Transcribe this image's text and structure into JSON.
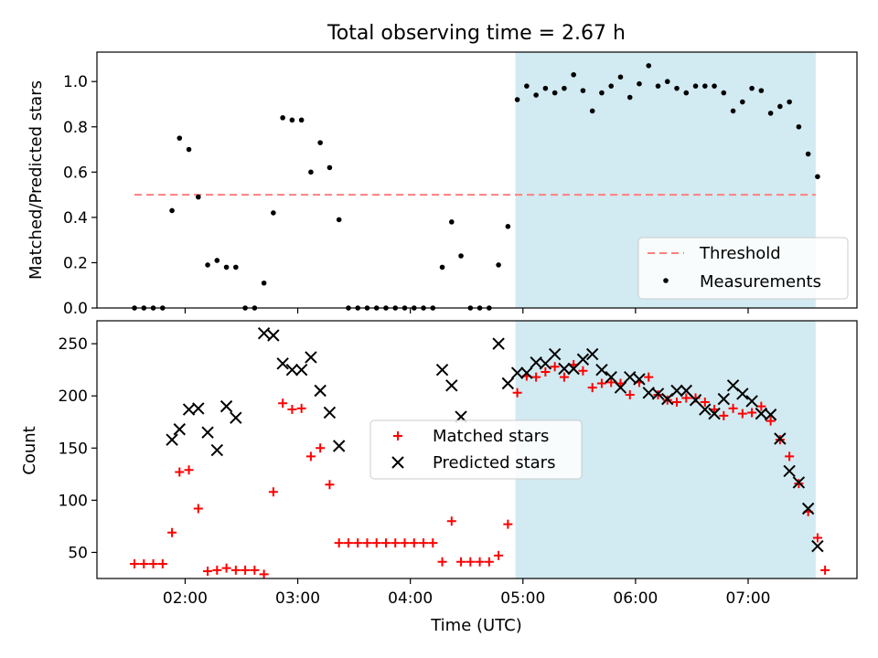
{
  "chart_data": [
    {
      "type": "scatter",
      "title": "Total observing time = 2.67 h",
      "ylabel": "Matched/Predicted stars",
      "xlabel": "",
      "ylim": [
        0,
        1.13
      ],
      "yticks": [
        "0.0",
        "0.2",
        "0.4",
        "0.6",
        "0.8",
        "1.0"
      ],
      "threshold": {
        "name": "Threshold",
        "value": 0.5,
        "x_start": "01:33",
        "x_end": "07:36",
        "color": "#ff7f7f"
      },
      "shaded_region": {
        "x_start": "04:56",
        "x_end": "07:36",
        "color": "#add8e6"
      },
      "legend": {
        "position": "lower right",
        "entries": [
          "Threshold",
          "Measurements"
        ]
      },
      "series": [
        {
          "name": "Measurements",
          "color": "#000000",
          "points": [
            [
              "01:33",
              0
            ],
            [
              "01:38",
              0
            ],
            [
              "01:43",
              0
            ],
            [
              "01:48",
              0
            ],
            [
              "01:53",
              0.43
            ],
            [
              "01:57",
              0.75
            ],
            [
              "02:02",
              0.7
            ],
            [
              "02:07",
              0.49
            ],
            [
              "02:12",
              0.19
            ],
            [
              "02:17",
              0.21
            ],
            [
              "02:22",
              0.18
            ],
            [
              "02:27",
              0.18
            ],
            [
              "02:32",
              0
            ],
            [
              "02:37",
              0
            ],
            [
              "02:42",
              0.11
            ],
            [
              "02:47",
              0.42
            ],
            [
              "02:52",
              0.84
            ],
            [
              "02:57",
              0.83
            ],
            [
              "03:02",
              0.83
            ],
            [
              "03:07",
              0.6
            ],
            [
              "03:12",
              0.73
            ],
            [
              "03:17",
              0.62
            ],
            [
              "03:22",
              0.39
            ],
            [
              "03:27",
              0
            ],
            [
              "03:32",
              0
            ],
            [
              "03:37",
              0
            ],
            [
              "03:42",
              0
            ],
            [
              "03:47",
              0
            ],
            [
              "03:52",
              0
            ],
            [
              "03:57",
              0
            ],
            [
              "04:02",
              0
            ],
            [
              "04:07",
              0
            ],
            [
              "04:12",
              0
            ],
            [
              "04:17",
              0.18
            ],
            [
              "04:22",
              0.38
            ],
            [
              "04:27",
              0.23
            ],
            [
              "04:32",
              0
            ],
            [
              "04:37",
              0
            ],
            [
              "04:42",
              0
            ],
            [
              "04:47",
              0.19
            ],
            [
              "04:52",
              0.36
            ],
            [
              "04:57",
              0.92
            ],
            [
              "05:02",
              0.98
            ],
            [
              "05:07",
              0.94
            ],
            [
              "05:12",
              0.97
            ],
            [
              "05:17",
              0.95
            ],
            [
              "05:22",
              0.97
            ],
            [
              "05:27",
              1.03
            ],
            [
              "05:32",
              0.96
            ],
            [
              "05:37",
              0.87
            ],
            [
              "05:42",
              0.95
            ],
            [
              "05:47",
              0.98
            ],
            [
              "05:52",
              1.02
            ],
            [
              "05:57",
              0.93
            ],
            [
              "06:02",
              0.99
            ],
            [
              "06:07",
              1.07
            ],
            [
              "06:12",
              0.98
            ],
            [
              "06:17",
              1.0
            ],
            [
              "06:22",
              0.97
            ],
            [
              "06:27",
              0.95
            ],
            [
              "06:32",
              0.98
            ],
            [
              "06:37",
              0.98
            ],
            [
              "06:42",
              0.98
            ],
            [
              "06:47",
              0.95
            ],
            [
              "06:52",
              0.87
            ],
            [
              "06:57",
              0.91
            ],
            [
              "07:02",
              0.97
            ],
            [
              "07:07",
              0.96
            ],
            [
              "07:12",
              0.86
            ],
            [
              "07:17",
              0.89
            ],
            [
              "07:22",
              0.91
            ],
            [
              "07:27",
              0.8
            ],
            [
              "07:32",
              0.68
            ],
            [
              "07:37",
              0.58
            ]
          ]
        }
      ]
    },
    {
      "type": "scatter",
      "title": "",
      "ylabel": "Count",
      "xlabel": "Time (UTC)",
      "ylim": [
        25,
        272
      ],
      "xlim": [
        "01:13",
        "07:58"
      ],
      "yticks": [
        "50",
        "100",
        "150",
        "200",
        "250"
      ],
      "xticks": [
        "02:00",
        "03:00",
        "04:00",
        "05:00",
        "06:00",
        "07:00"
      ],
      "shaded_region": {
        "x_start": "04:56",
        "x_end": "07:36",
        "color": "#add8e6"
      },
      "legend": {
        "position": "center",
        "entries": [
          "Matched stars",
          "Predicted stars"
        ]
      },
      "series": [
        {
          "name": "Matched stars",
          "marker": "plus",
          "color": "#ff0000",
          "points": [
            [
              "01:33",
              39
            ],
            [
              "01:38",
              39
            ],
            [
              "01:43",
              39
            ],
            [
              "01:48",
              39
            ],
            [
              "01:53",
              69
            ],
            [
              "01:57",
              127
            ],
            [
              "02:02",
              129
            ],
            [
              "02:07",
              92
            ],
            [
              "02:12",
              32
            ],
            [
              "02:17",
              33
            ],
            [
              "02:22",
              35
            ],
            [
              "02:27",
              33
            ],
            [
              "02:32",
              33
            ],
            [
              "02:37",
              33
            ],
            [
              "02:42",
              29
            ],
            [
              "02:47",
              108
            ],
            [
              "02:52",
              193
            ],
            [
              "02:57",
              187
            ],
            [
              "03:02",
              188
            ],
            [
              "03:07",
              142
            ],
            [
              "03:12",
              150
            ],
            [
              "03:17",
              115
            ],
            [
              "03:22",
              59
            ],
            [
              "03:27",
              59
            ],
            [
              "03:32",
              59
            ],
            [
              "03:37",
              59
            ],
            [
              "03:42",
              59
            ],
            [
              "03:47",
              59
            ],
            [
              "03:52",
              59
            ],
            [
              "03:57",
              59
            ],
            [
              "04:02",
              59
            ],
            [
              "04:07",
              59
            ],
            [
              "04:12",
              59
            ],
            [
              "04:17",
              41
            ],
            [
              "04:22",
              80
            ],
            [
              "04:27",
              41
            ],
            [
              "04:32",
              41
            ],
            [
              "04:37",
              41
            ],
            [
              "04:42",
              41
            ],
            [
              "04:47",
              47
            ],
            [
              "04:52",
              77
            ],
            [
              "04:57",
              203
            ],
            [
              "05:02",
              219
            ],
            [
              "05:07",
              218
            ],
            [
              "05:12",
              223
            ],
            [
              "05:17",
              228
            ],
            [
              "05:22",
              218
            ],
            [
              "05:27",
              230
            ],
            [
              "05:32",
              224
            ],
            [
              "05:37",
              208
            ],
            [
              "05:42",
              212
            ],
            [
              "05:47",
              213
            ],
            [
              "05:52",
              212
            ],
            [
              "05:57",
              201
            ],
            [
              "06:02",
              213
            ],
            [
              "06:07",
              218
            ],
            [
              "06:12",
              201
            ],
            [
              "06:17",
              196
            ],
            [
              "06:22",
              194
            ],
            [
              "06:27",
              198
            ],
            [
              "06:32",
              198
            ],
            [
              "06:37",
              194
            ],
            [
              "06:42",
              187
            ],
            [
              "06:47",
              181
            ],
            [
              "06:52",
              188
            ],
            [
              "06:57",
              183
            ],
            [
              "07:02",
              184
            ],
            [
              "07:07",
              190
            ],
            [
              "07:12",
              176
            ],
            [
              "07:17",
              158
            ],
            [
              "07:22",
              142
            ],
            [
              "07:27",
              116
            ],
            [
              "07:32",
              89
            ],
            [
              "07:37",
              64
            ],
            [
              "07:41",
              33
            ]
          ]
        },
        {
          "name": "Predicted stars",
          "marker": "x",
          "color": "#000000",
          "points": [
            [
              "01:53",
              158
            ],
            [
              "01:57",
              168
            ],
            [
              "02:02",
              187
            ],
            [
              "02:07",
              188
            ],
            [
              "02:12",
              165
            ],
            [
              "02:17",
              148
            ],
            [
              "02:22",
              190
            ],
            [
              "02:27",
              179
            ],
            [
              "02:42",
              260
            ],
            [
              "02:47",
              258
            ],
            [
              "02:52",
              231
            ],
            [
              "02:57",
              225
            ],
            [
              "03:02",
              225
            ],
            [
              "03:07",
              237
            ],
            [
              "03:12",
              205
            ],
            [
              "03:17",
              184
            ],
            [
              "03:22",
              152
            ],
            [
              "04:17",
              225
            ],
            [
              "04:22",
              210
            ],
            [
              "04:27",
              180
            ],
            [
              "04:47",
              250
            ],
            [
              "04:52",
              212
            ],
            [
              "04:57",
              222
            ],
            [
              "05:02",
              222
            ],
            [
              "05:07",
              232
            ],
            [
              "05:12",
              231
            ],
            [
              "05:17",
              240
            ],
            [
              "05:22",
              226
            ],
            [
              "05:27",
              226
            ],
            [
              "05:32",
              235
            ],
            [
              "05:37",
              240
            ],
            [
              "05:42",
              225
            ],
            [
              "05:47",
              218
            ],
            [
              "05:52",
              208
            ],
            [
              "05:57",
              218
            ],
            [
              "06:02",
              216
            ],
            [
              "06:07",
              203
            ],
            [
              "06:12",
              202
            ],
            [
              "06:17",
              197
            ],
            [
              "06:22",
              205
            ],
            [
              "06:27",
              205
            ],
            [
              "06:32",
              196
            ],
            [
              "06:37",
              187
            ],
            [
              "06:42",
              183
            ],
            [
              "06:47",
              197
            ],
            [
              "06:52",
              210
            ],
            [
              "06:57",
              202
            ],
            [
              "07:02",
              195
            ],
            [
              "07:07",
              183
            ],
            [
              "07:12",
              182
            ],
            [
              "07:17",
              159
            ],
            [
              "07:22",
              128
            ],
            [
              "07:27",
              117
            ],
            [
              "07:32",
              92
            ],
            [
              "07:37",
              56
            ]
          ]
        }
      ]
    }
  ]
}
